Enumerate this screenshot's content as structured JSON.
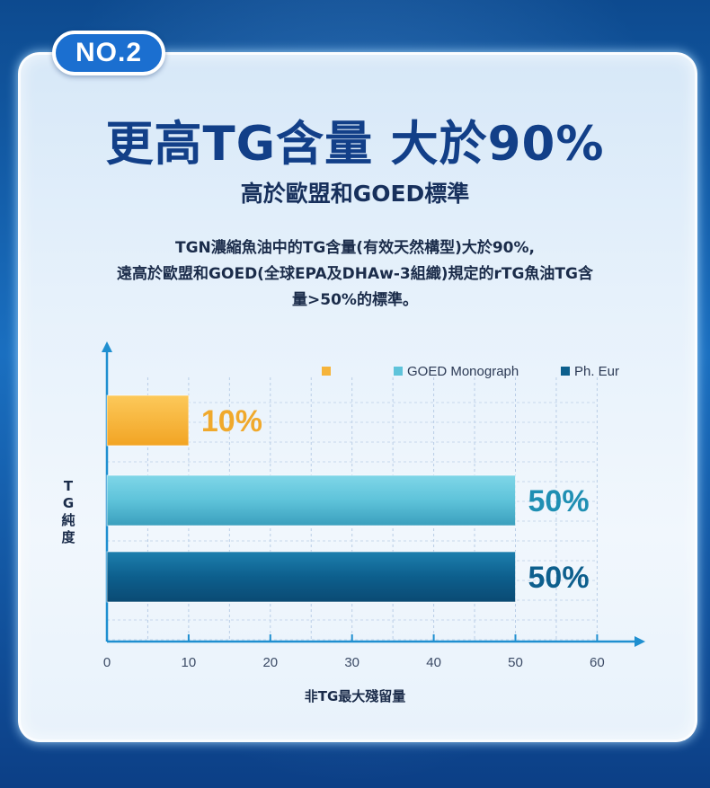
{
  "badge": "NO.2",
  "title": "更高TG含量 大於90%",
  "subtitle": "高於歐盟和GOED標準",
  "description": {
    "line1": "TGN濃縮魚油中的TG含量(有效天然構型)大於90%,",
    "line2": "遠高於歐盟和GOED(全球EPA及DHAw-3組織)規定的rTG魚油TG含",
    "line3": "量>50%的標準。"
  },
  "colors": {
    "navy_text": "#123f88",
    "orange": "#f6b43a",
    "light_blue": "#5ec3da",
    "dark_blue": "#0d5f8d"
  },
  "chart_data": {
    "type": "bar",
    "orientation": "horizontal",
    "xlabel": "非TG最大殘留量",
    "ylabel": "TG純度",
    "xlim": [
      0,
      60
    ],
    "x_ticks": [
      "0",
      "10",
      "20",
      "30",
      "40",
      "50",
      "60"
    ],
    "grid": true,
    "legend_position": "top-right",
    "series": [
      {
        "name": "",
        "value": 10,
        "label": "10%",
        "color": "#f6b43a",
        "label_color": "#f0a92c"
      },
      {
        "name": "GOED Monograph",
        "value": 50,
        "label": "50%",
        "color": "#5ec3da",
        "label_color": "#1f8fb3"
      },
      {
        "name": "Ph. Eur",
        "value": 50,
        "label": "50%",
        "color": "#0d5f8d",
        "label_color": "#0d5f8d"
      }
    ]
  }
}
